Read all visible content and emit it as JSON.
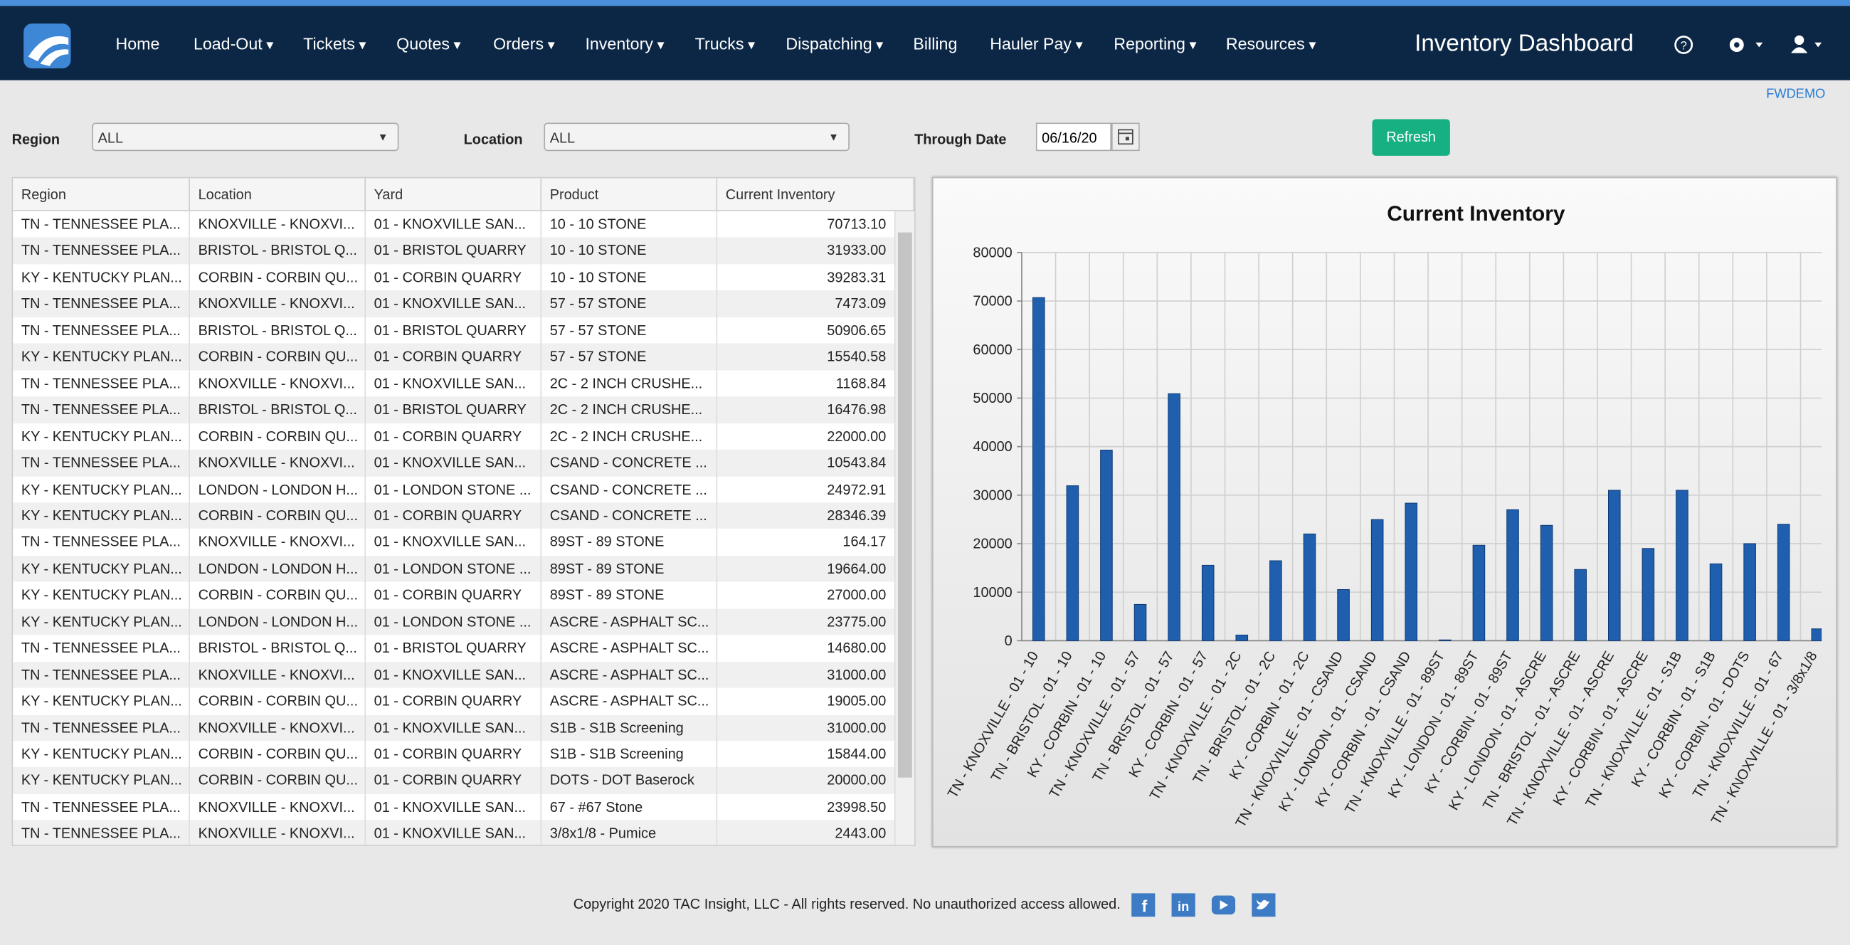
{
  "nav": {
    "items": [
      "Home",
      "Load-Out",
      "Tickets",
      "Quotes",
      "Orders",
      "Inventory",
      "Trucks",
      "Dispatching",
      "Billing",
      "Hauler Pay",
      "Reporting",
      "Resources"
    ],
    "dropdown": [
      false,
      true,
      true,
      true,
      true,
      true,
      true,
      true,
      false,
      true,
      true,
      true
    ],
    "title": "Inventory Dashboard",
    "user_code": "FWDEMO"
  },
  "filters": {
    "region_label": "Region",
    "region_value": "ALL",
    "location_label": "Location",
    "location_value": "ALL",
    "date_label": "Through Date",
    "date_value": "06/16/20",
    "refresh": "Refresh"
  },
  "table": {
    "columns": [
      "Region",
      "Location",
      "Yard",
      "Product",
      "Current Inventory"
    ],
    "rows": [
      [
        "TN - TENNESSEE PLA...",
        "KNOXVILLE - KNOXVI...",
        "01 - KNOXVILLE SAN...",
        "10 - 10 STONE",
        "70713.10"
      ],
      [
        "TN - TENNESSEE PLA...",
        "BRISTOL - BRISTOL Q...",
        "01 - BRISTOL QUARRY",
        "10 - 10 STONE",
        "31933.00"
      ],
      [
        "KY - KENTUCKY PLAN...",
        "CORBIN - CORBIN QU...",
        "01 - CORBIN QUARRY",
        "10 - 10 STONE",
        "39283.31"
      ],
      [
        "TN - TENNESSEE PLA...",
        "KNOXVILLE - KNOXVI...",
        "01 - KNOXVILLE SAN...",
        "57 - 57 STONE",
        "7473.09"
      ],
      [
        "TN - TENNESSEE PLA...",
        "BRISTOL - BRISTOL Q...",
        "01 - BRISTOL QUARRY",
        "57 - 57 STONE",
        "50906.65"
      ],
      [
        "KY - KENTUCKY PLAN...",
        "CORBIN - CORBIN QU...",
        "01 - CORBIN QUARRY",
        "57 - 57 STONE",
        "15540.58"
      ],
      [
        "TN - TENNESSEE PLA...",
        "KNOXVILLE - KNOXVI...",
        "01 - KNOXVILLE SAN...",
        "2C - 2 INCH CRUSHE...",
        "1168.84"
      ],
      [
        "TN - TENNESSEE PLA...",
        "BRISTOL - BRISTOL Q...",
        "01 - BRISTOL QUARRY",
        "2C - 2 INCH CRUSHE...",
        "16476.98"
      ],
      [
        "KY - KENTUCKY PLAN...",
        "CORBIN - CORBIN QU...",
        "01 - CORBIN QUARRY",
        "2C - 2 INCH CRUSHE...",
        "22000.00"
      ],
      [
        "TN - TENNESSEE PLA...",
        "KNOXVILLE - KNOXVI...",
        "01 - KNOXVILLE SAN...",
        "CSAND - CONCRETE ...",
        "10543.84"
      ],
      [
        "KY - KENTUCKY PLAN...",
        "LONDON - LONDON H...",
        "01 - LONDON STONE ...",
        "CSAND - CONCRETE ...",
        "24972.91"
      ],
      [
        "KY - KENTUCKY PLAN...",
        "CORBIN - CORBIN QU...",
        "01 - CORBIN QUARRY",
        "CSAND - CONCRETE ...",
        "28346.39"
      ],
      [
        "TN - TENNESSEE PLA...",
        "KNOXVILLE - KNOXVI...",
        "01 - KNOXVILLE SAN...",
        "89ST - 89 STONE",
        "164.17"
      ],
      [
        "KY - KENTUCKY PLAN...",
        "LONDON - LONDON H...",
        "01 - LONDON STONE ...",
        "89ST - 89 STONE",
        "19664.00"
      ],
      [
        "KY - KENTUCKY PLAN...",
        "CORBIN - CORBIN QU...",
        "01 - CORBIN QUARRY",
        "89ST - 89 STONE",
        "27000.00"
      ],
      [
        "KY - KENTUCKY PLAN...",
        "LONDON - LONDON H...",
        "01 - LONDON STONE ...",
        "ASCRE - ASPHALT SC...",
        "23775.00"
      ],
      [
        "TN - TENNESSEE PLA...",
        "BRISTOL - BRISTOL Q...",
        "01 - BRISTOL QUARRY",
        "ASCRE - ASPHALT SC...",
        "14680.00"
      ],
      [
        "TN - TENNESSEE PLA...",
        "KNOXVILLE - KNOXVI...",
        "01 - KNOXVILLE SAN...",
        "ASCRE - ASPHALT SC...",
        "31000.00"
      ],
      [
        "KY - KENTUCKY PLAN...",
        "CORBIN - CORBIN QU...",
        "01 - CORBIN QUARRY",
        "ASCRE - ASPHALT SC...",
        "19005.00"
      ],
      [
        "TN - TENNESSEE PLA...",
        "KNOXVILLE - KNOXVI...",
        "01 - KNOXVILLE SAN...",
        "S1B - S1B Screening",
        "31000.00"
      ],
      [
        "KY - KENTUCKY PLAN...",
        "CORBIN - CORBIN QU...",
        "01 - CORBIN QUARRY",
        "S1B - S1B Screening",
        "15844.00"
      ],
      [
        "KY - KENTUCKY PLAN...",
        "CORBIN - CORBIN QU...",
        "01 - CORBIN QUARRY",
        "DOTS - DOT Baserock",
        "20000.00"
      ],
      [
        "TN - TENNESSEE PLA...",
        "KNOXVILLE - KNOXVI...",
        "01 - KNOXVILLE SAN...",
        "67 - #67 Stone",
        "23998.50"
      ],
      [
        "TN - TENNESSEE PLA...",
        "KNOXVILLE - KNOXVI...",
        "01 - KNOXVILLE SAN...",
        "3/8x1/8 - Pumice",
        "2443.00"
      ]
    ]
  },
  "chart_data": {
    "type": "bar",
    "title": "Current Inventory",
    "categories": [
      "TN - KNOXVILLE - 01 - 10",
      "TN - BRISTOL - 01 - 10",
      "KY - CORBIN - 01 - 10",
      "TN - KNOXVILLE - 01 - 57",
      "TN - BRISTOL - 01 - 57",
      "KY - CORBIN - 01 - 57",
      "TN - KNOXVILLE - 01 - 2C",
      "TN - BRISTOL - 01 - 2C",
      "KY - CORBIN - 01 - 2C",
      "TN - KNOXVILLE - 01 - CSAND",
      "KY - LONDON - 01 - CSAND",
      "KY - CORBIN - 01 - CSAND",
      "TN - KNOXVILLE - 01 - 89ST",
      "KY - LONDON - 01 - 89ST",
      "KY - CORBIN - 01 - 89ST",
      "KY - LONDON - 01 - ASCRE",
      "TN - BRISTOL - 01 - ASCRE",
      "TN - KNOXVILLE - 01 - ASCRE",
      "KY - CORBIN - 01 - ASCRE",
      "TN - KNOXVILLE - 01 - S1B",
      "KY - CORBIN - 01 - S1B",
      "KY - CORBIN - 01 - DOTS",
      "TN - KNOXVILLE - 01 - 67",
      "TN - KNOXVILLE - 01 - 3/8x1/8"
    ],
    "values": [
      70713.1,
      31933.0,
      39283.31,
      7473.09,
      50906.65,
      15540.58,
      1168.84,
      16476.98,
      22000.0,
      10543.84,
      24972.91,
      28346.39,
      164.17,
      19664.0,
      27000.0,
      23775.0,
      14680.0,
      31000.0,
      19005.0,
      31000.0,
      15844.0,
      20000.0,
      23998.5,
      2443.0
    ],
    "color": "#1f5fae",
    "ylim": [
      0,
      80000
    ],
    "yticks": [
      0,
      10000,
      20000,
      30000,
      40000,
      50000,
      60000,
      70000,
      80000
    ],
    "grid": true
  },
  "footer": {
    "copyright": "Copyright 2020 TAC Insight, LLC - All rights reserved. No unauthorized access allowed."
  }
}
